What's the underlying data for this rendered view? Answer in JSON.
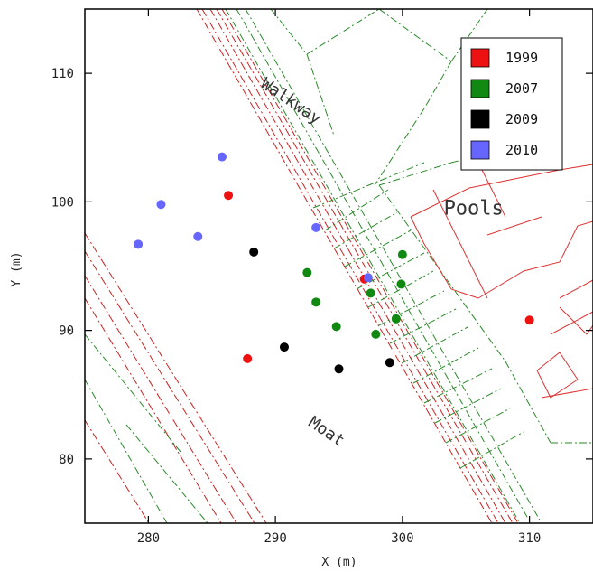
{
  "chart_data": {
    "type": "scatter",
    "xlabel": "X (m)",
    "ylabel": "Y (m)",
    "xlim": [
      275,
      315
    ],
    "ylim": [
      75,
      115
    ],
    "xticks": [
      280,
      290,
      300,
      310
    ],
    "yticks": [
      80,
      90,
      100,
      110
    ],
    "grid": false,
    "legend_position": "top-right",
    "annotations": [
      {
        "text": "Walkway",
        "x": 291,
        "y": 107.5,
        "rotation": 34,
        "size": 18
      },
      {
        "text": "Pools",
        "x": 305.6,
        "y": 99,
        "rotation": 0,
        "size": 22
      },
      {
        "text": "Moat",
        "x": 293.8,
        "y": 81.8,
        "rotation": 34,
        "size": 18
      }
    ],
    "series": [
      {
        "name": "1999",
        "color": "#ee1111",
        "points": [
          [
            286.3,
            100.5
          ],
          [
            297.0,
            94.0
          ],
          [
            287.8,
            87.8
          ],
          [
            310.0,
            90.8
          ]
        ]
      },
      {
        "name": "2007",
        "color": "#118811",
        "points": [
          [
            292.5,
            94.5
          ],
          [
            293.2,
            92.2
          ],
          [
            294.8,
            90.3
          ],
          [
            297.5,
            92.9
          ],
          [
            297.9,
            89.7
          ],
          [
            299.5,
            90.9
          ],
          [
            300.0,
            95.9
          ],
          [
            299.9,
            93.6
          ]
        ]
      },
      {
        "name": "2009",
        "color": "#000000",
        "points": [
          [
            288.3,
            96.1
          ],
          [
            290.7,
            88.7
          ],
          [
            295.0,
            87.0
          ],
          [
            299.0,
            87.5
          ]
        ]
      },
      {
        "name": "2010",
        "color": "#6666ff",
        "points": [
          [
            285.8,
            103.5
          ],
          [
            281.0,
            99.8
          ],
          [
            279.2,
            96.7
          ],
          [
            283.9,
            97.3
          ],
          [
            293.2,
            98.0
          ],
          [
            297.3,
            94.1
          ]
        ]
      }
    ]
  }
}
